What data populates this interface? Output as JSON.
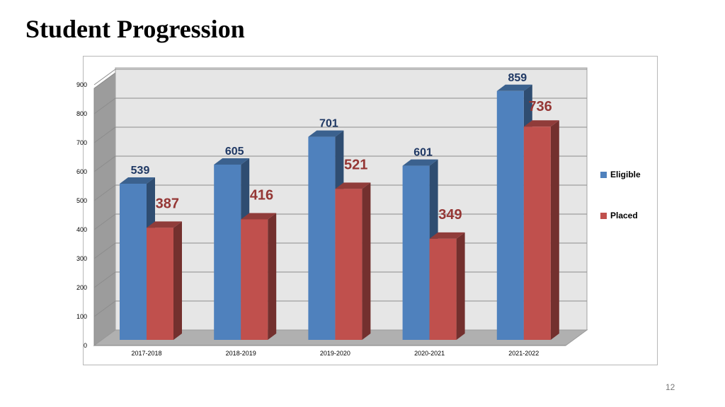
{
  "slide": {
    "title": "Student Progression",
    "page_number": "12"
  },
  "chart_data": {
    "type": "bar",
    "style": "3d-clustered-column",
    "title": "",
    "xlabel": "",
    "ylabel": "",
    "categories": [
      "2017-2018",
      "2018-2019",
      "2019-2020",
      "2020-2021",
      "2021-2022"
    ],
    "series": [
      {
        "name": "Eligible",
        "values": [
          539,
          605,
          701,
          601,
          859
        ],
        "color": "#4f81bd",
        "label_color": "#1f3864"
      },
      {
        "name": "Placed",
        "values": [
          387,
          416,
          521,
          349,
          736
        ],
        "color": "#c0504d",
        "label_color": "#953735"
      }
    ],
    "ylim": [
      0,
      900
    ],
    "yticks": [
      0,
      100,
      200,
      300,
      400,
      500,
      600,
      700,
      800,
      900
    ],
    "grid": true,
    "legend": "right",
    "data_labels": true
  }
}
